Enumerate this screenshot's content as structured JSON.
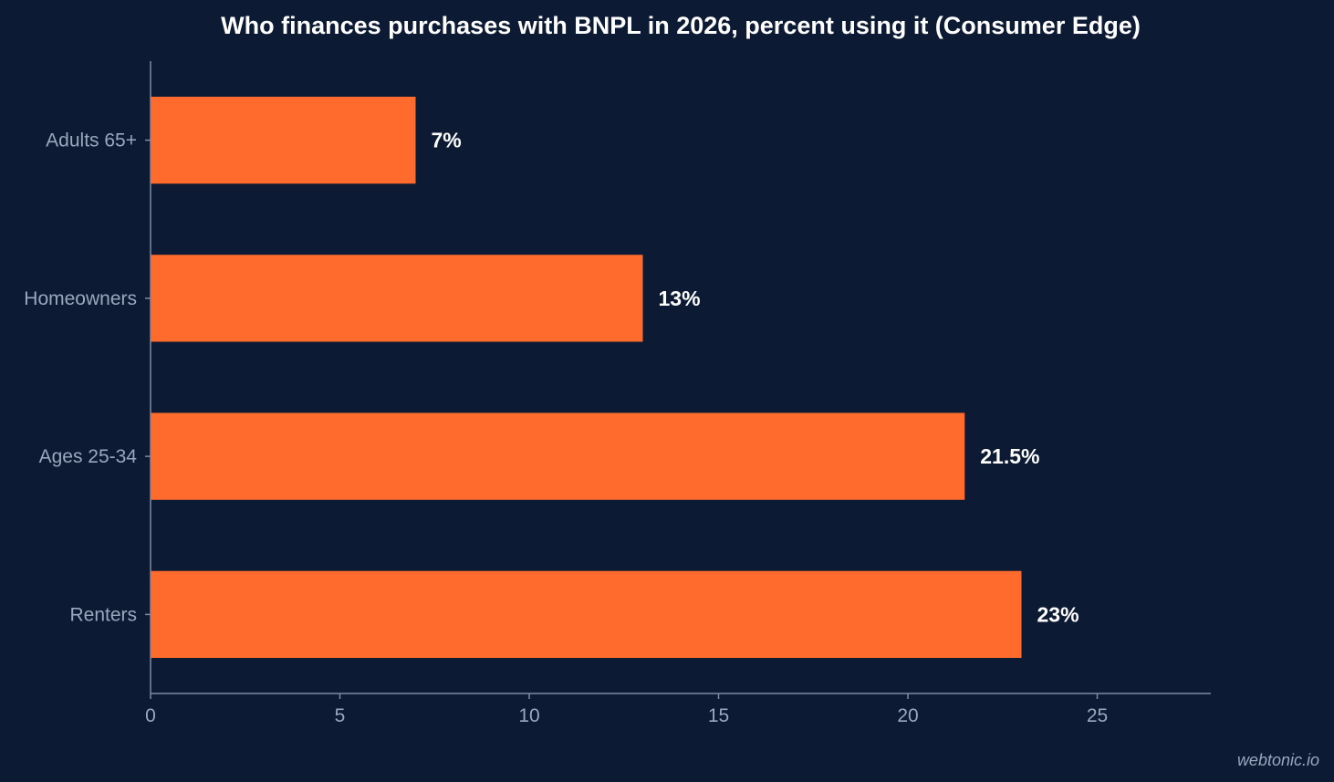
{
  "chart_data": {
    "type": "bar",
    "orientation": "horizontal",
    "title": "Who finances purchases with BNPL in 2026, percent using it (Consumer Edge)",
    "categories": [
      "Adults 65+",
      "Homeowners",
      "Ages 25-34",
      "Renters"
    ],
    "values": [
      7,
      13,
      21.5,
      23
    ],
    "data_labels": [
      "7%",
      "13%",
      "21.5%",
      "23%"
    ],
    "xlim": [
      0,
      28
    ],
    "xticks": [
      0,
      5,
      10,
      15,
      20,
      25
    ],
    "xlabel": "",
    "ylabel": "",
    "grid": false,
    "legend": "none",
    "colors": {
      "bar": "#ff6b2c",
      "background": "#0c1a33",
      "axis": "#7d8aa3",
      "tick_text": "#9aa7bd",
      "label_text": "#ffffff"
    }
  },
  "watermark": "webtonic.io"
}
